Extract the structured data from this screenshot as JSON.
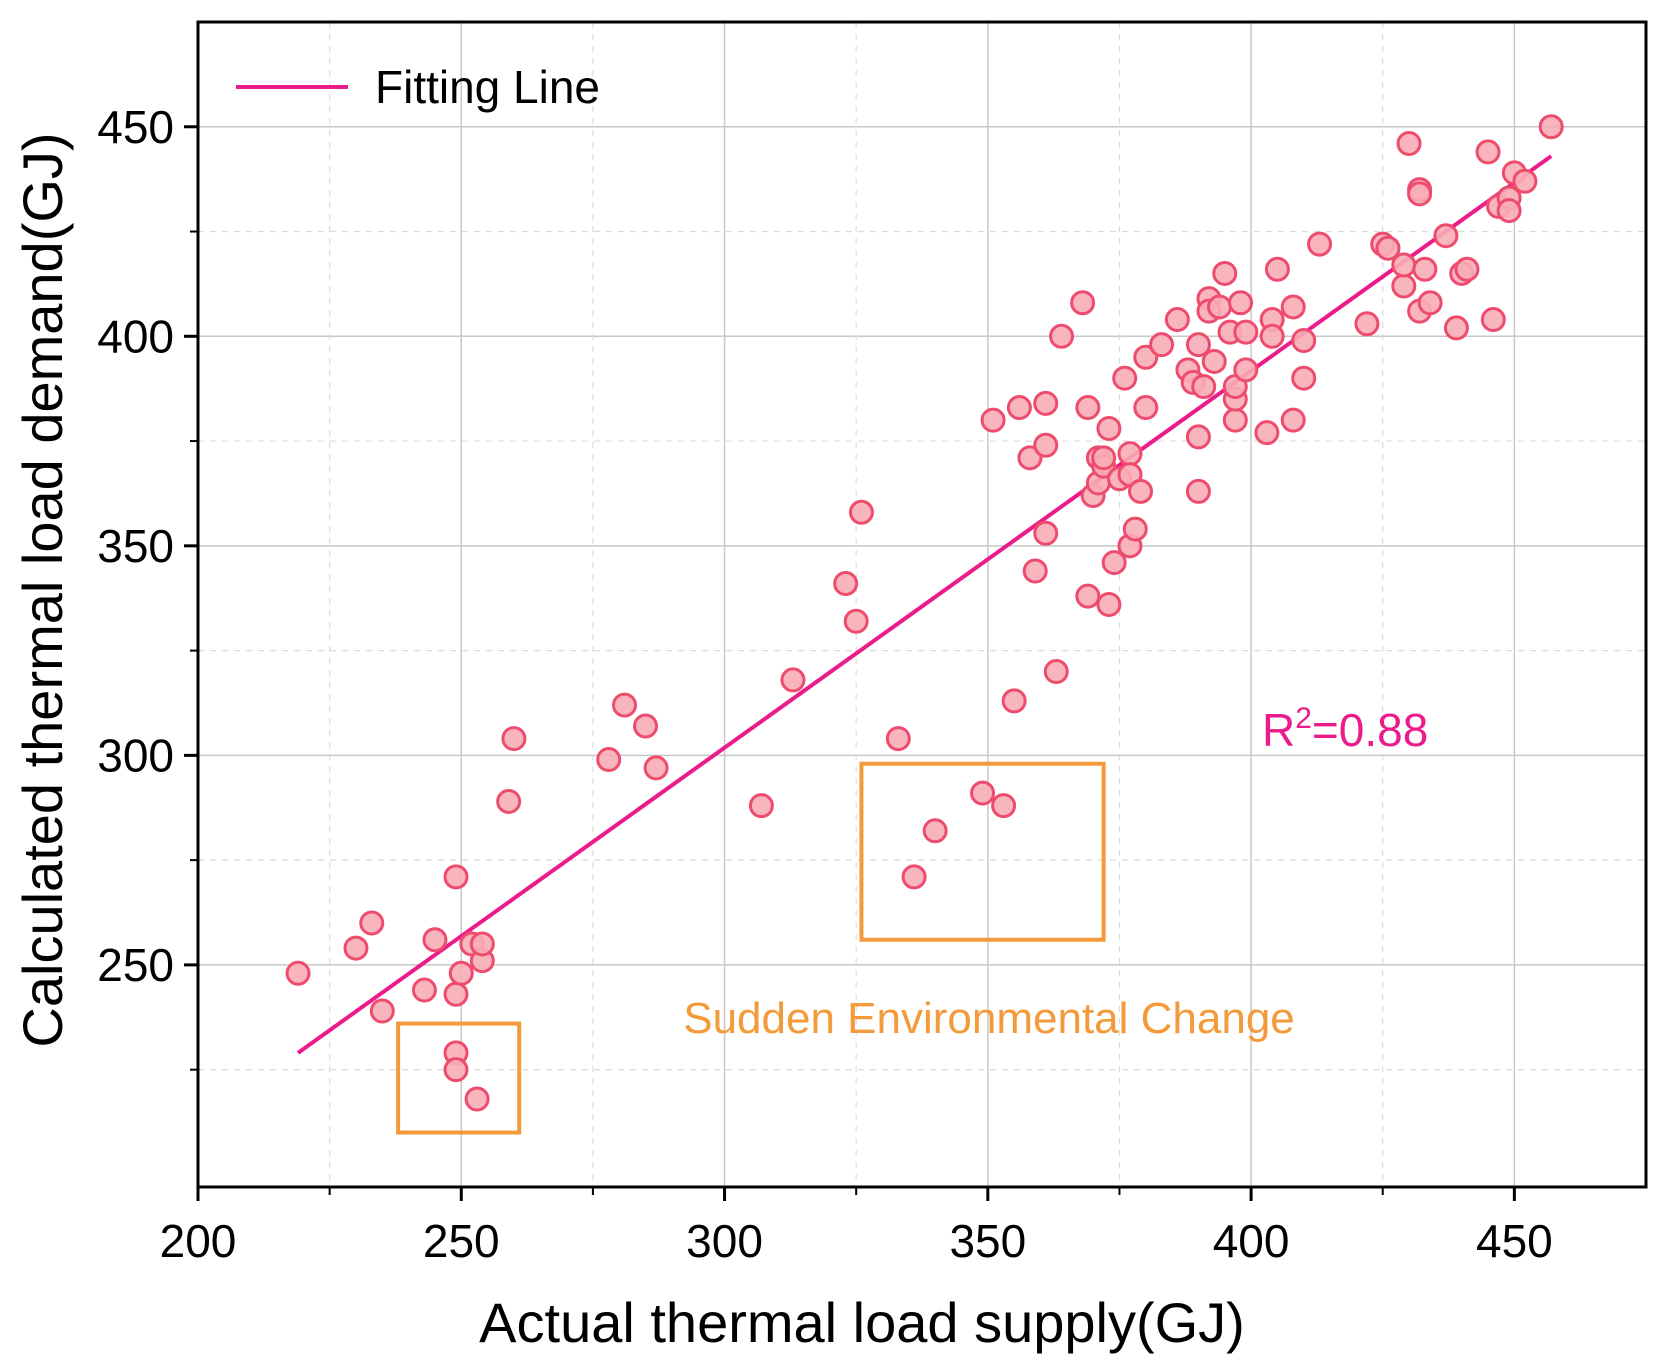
{
  "chart_data": {
    "type": "scatter",
    "xlabel": "Actual thermal load supply(GJ)",
    "ylabel": "Calculated thermal load demand(GJ)",
    "xlim": [
      200,
      475
    ],
    "ylim": [
      197,
      475
    ],
    "xticks": [
      200,
      250,
      300,
      350,
      400,
      450
    ],
    "yticks": [
      250,
      300,
      350,
      400,
      450
    ],
    "grid": true,
    "legend": {
      "label": "Fitting Line",
      "position": "top-left"
    },
    "fit_line": {
      "x": [
        219,
        457
      ],
      "y": [
        229,
        443
      ]
    },
    "r2_text": {
      "base": "R",
      "sup": "2",
      "value": "=0.88"
    },
    "annotation": "Sudden Environmental Change",
    "highlight_regions": [
      {
        "x": [
          238,
          261
        ],
        "y": [
          210,
          236
        ]
      },
      {
        "x": [
          326,
          372
        ],
        "y": [
          256,
          298
        ]
      }
    ],
    "colors": {
      "fit_line": "#ec1b8c",
      "marker_edge": "#ee4c6e",
      "marker_fill": "#f8adb6",
      "highlight": "#f39a3b",
      "r2": "#ec1b8c"
    },
    "points": [
      [
        219,
        248
      ],
      [
        230,
        254
      ],
      [
        233,
        260
      ],
      [
        235,
        239
      ],
      [
        243,
        244
      ],
      [
        245,
        256
      ],
      [
        249,
        243
      ],
      [
        249,
        229
      ],
      [
        249,
        225
      ],
      [
        249,
        271
      ],
      [
        250,
        248
      ],
      [
        252,
        255
      ],
      [
        254,
        251
      ],
      [
        254,
        255
      ],
      [
        253,
        218
      ],
      [
        259,
        289
      ],
      [
        260,
        304
      ],
      [
        278,
        299
      ],
      [
        281,
        312
      ],
      [
        285,
        307
      ],
      [
        287,
        297
      ],
      [
        307,
        288
      ],
      [
        313,
        318
      ],
      [
        323,
        341
      ],
      [
        325,
        332
      ],
      [
        326,
        358
      ],
      [
        333,
        304
      ],
      [
        336,
        271
      ],
      [
        340,
        282
      ],
      [
        349,
        291
      ],
      [
        353,
        288
      ],
      [
        351,
        380
      ],
      [
        355,
        313
      ],
      [
        356,
        383
      ],
      [
        358,
        371
      ],
      [
        359,
        344
      ],
      [
        361,
        374
      ],
      [
        361,
        384
      ],
      [
        361,
        353
      ],
      [
        363,
        320
      ],
      [
        364,
        400
      ],
      [
        368,
        408
      ],
      [
        369,
        338
      ],
      [
        369,
        383
      ],
      [
        370,
        362
      ],
      [
        371,
        365
      ],
      [
        371,
        371
      ],
      [
        372,
        369
      ],
      [
        372,
        371
      ],
      [
        373,
        378
      ],
      [
        373,
        336
      ],
      [
        374,
        346
      ],
      [
        375,
        366
      ],
      [
        376,
        390
      ],
      [
        377,
        372
      ],
      [
        377,
        367
      ],
      [
        377,
        350
      ],
      [
        378,
        354
      ],
      [
        379,
        363
      ],
      [
        380,
        383
      ],
      [
        380,
        395
      ],
      [
        383,
        398
      ],
      [
        386,
        404
      ],
      [
        388,
        392
      ],
      [
        389,
        389
      ],
      [
        390,
        398
      ],
      [
        390,
        376
      ],
      [
        390,
        363
      ],
      [
        391,
        388
      ],
      [
        392,
        409
      ],
      [
        392,
        406
      ],
      [
        393,
        394
      ],
      [
        394,
        407
      ],
      [
        395,
        415
      ],
      [
        396,
        401
      ],
      [
        397,
        380
      ],
      [
        397,
        385
      ],
      [
        397,
        388
      ],
      [
        398,
        408
      ],
      [
        399,
        401
      ],
      [
        399,
        392
      ],
      [
        403,
        377
      ],
      [
        404,
        404
      ],
      [
        404,
        400
      ],
      [
        405,
        416
      ],
      [
        408,
        407
      ],
      [
        408,
        380
      ],
      [
        410,
        399
      ],
      [
        410,
        390
      ],
      [
        413,
        422
      ],
      [
        422,
        403
      ],
      [
        425,
        422
      ],
      [
        426,
        421
      ],
      [
        429,
        412
      ],
      [
        429,
        417
      ],
      [
        430,
        446
      ],
      [
        432,
        435
      ],
      [
        432,
        434
      ],
      [
        432,
        406
      ],
      [
        433,
        416
      ],
      [
        434,
        408
      ],
      [
        437,
        424
      ],
      [
        439,
        402
      ],
      [
        440,
        415
      ],
      [
        441,
        416
      ],
      [
        445,
        444
      ],
      [
        446,
        404
      ],
      [
        447,
        431
      ],
      [
        449,
        433
      ],
      [
        449,
        430
      ],
      [
        450,
        439
      ],
      [
        452,
        437
      ],
      [
        457,
        450
      ]
    ]
  }
}
